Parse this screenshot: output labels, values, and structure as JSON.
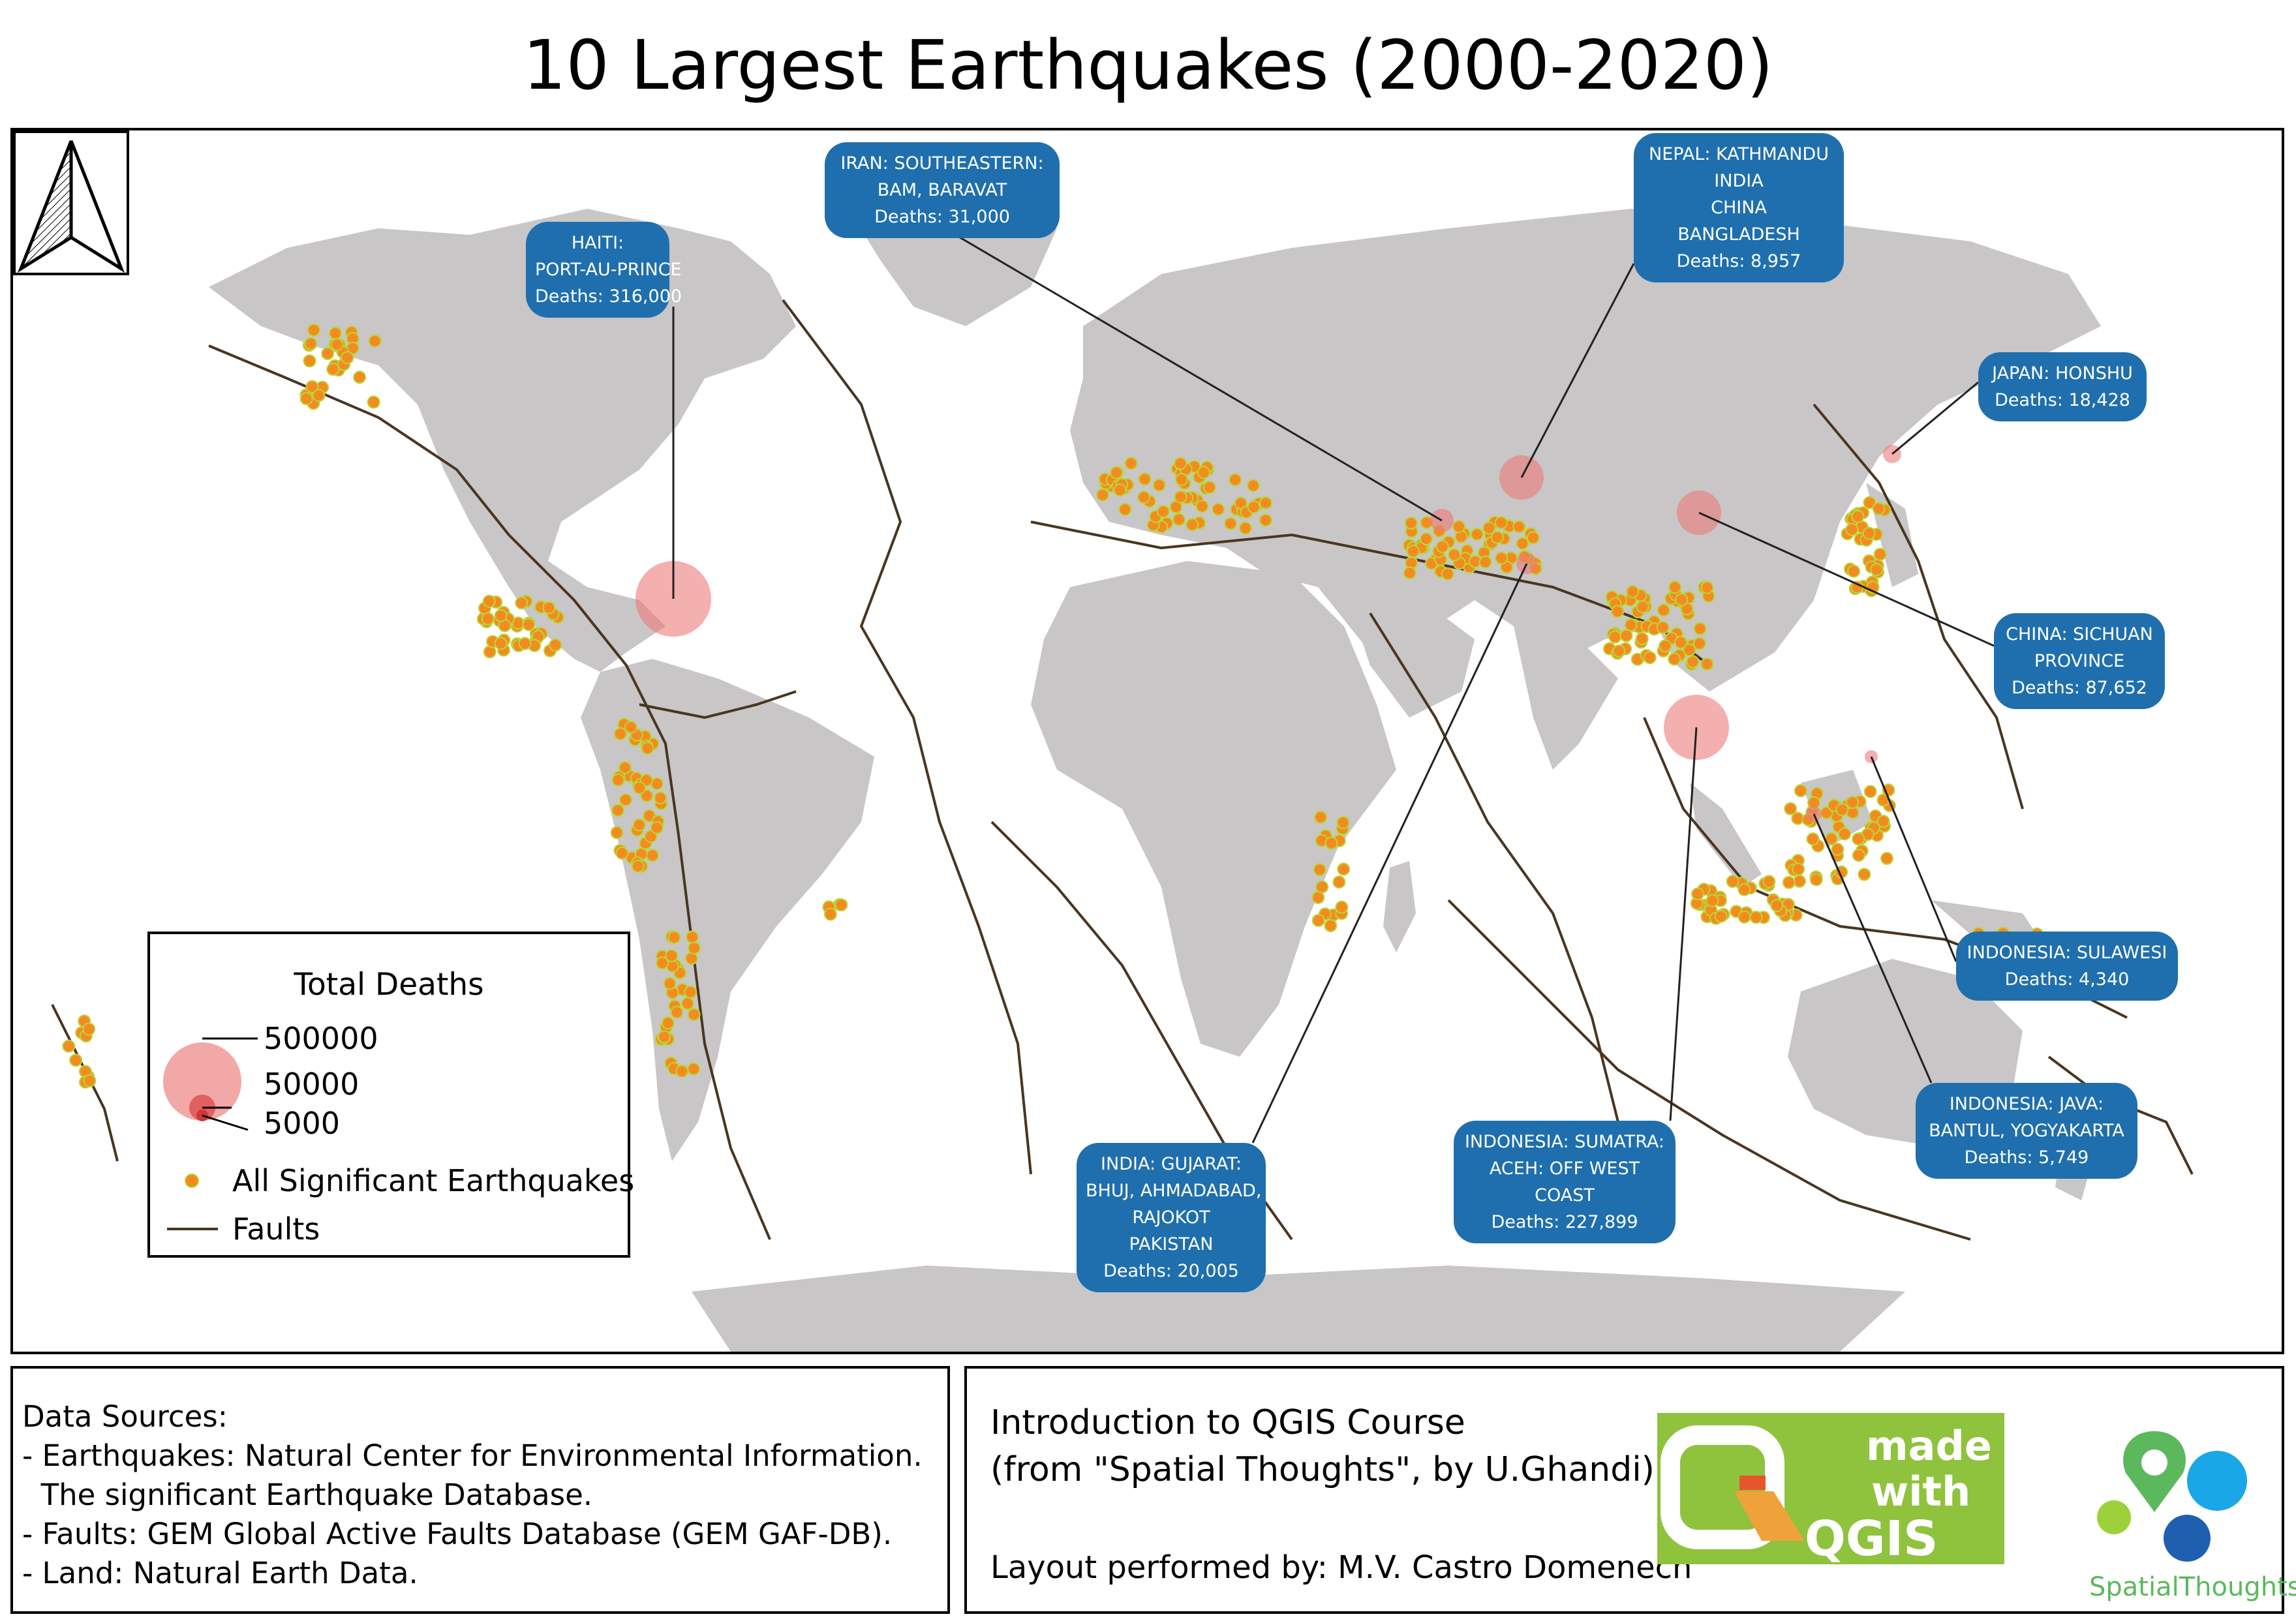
{
  "title": "10 Largest Earthquakes (2000-2020)",
  "map": {
    "land_color": "#c8c6c6",
    "fault_color": "#4a3520",
    "quake_color": "#f58a1f",
    "quake_outline": "#b5d83a",
    "death_bubble_color": "#ec7a7a"
  },
  "callouts": [
    {
      "lines": [
        "HAITI:",
        "PORT-AU-PRINCE",
        "Deaths: 316,000"
      ]
    },
    {
      "lines": [
        "IRAN:  SOUTHEASTERN:",
        "BAM, BARAVAT",
        "Deaths: 31,000"
      ]
    },
    {
      "lines": [
        "NEPAL:  KATHMANDU",
        "INDIA",
        "CHINA",
        "BANGLADESH",
        "Deaths: 8,957"
      ]
    },
    {
      "lines": [
        "JAPAN:  HONSHU",
        "Deaths: 18,428"
      ]
    },
    {
      "lines": [
        "CHINA:  SICHUAN",
        "PROVINCE",
        "Deaths: 87,652"
      ]
    },
    {
      "lines": [
        "INDONESIA:  SULAWESI",
        "Deaths: 4,340"
      ]
    },
    {
      "lines": [
        "INDONESIA:  JAVA:",
        "BANTUL, YOGYAKARTA",
        "Deaths: 5,749"
      ]
    },
    {
      "lines": [
        "INDONESIA:  SUMATRA:",
        "ACEH:  OFF WEST",
        "COAST",
        "Deaths: 227,899"
      ]
    },
    {
      "lines": [
        "INDIA:  GUJARAT:",
        "BHUJ, AHMADABAD,",
        "RAJOKOT",
        "PAKISTAN",
        "Deaths: 20,005"
      ]
    }
  ],
  "legend": {
    "title": "Total Deaths",
    "sizes": [
      "500000",
      "50000",
      "5000"
    ],
    "quakes_label": "All Significant Earthquakes",
    "faults_label": "Faults"
  },
  "sources": {
    "lines": [
      "Data Sources:",
      "- Earthquakes: Natural Center for Environmental Information.",
      "  The significant Earthquake Database.",
      "- Faults: GEM Global Active Faults Database (GEM GAF-DB).",
      "- Land: Natural Earth Data."
    ]
  },
  "credits": {
    "course_line1": "Introduction to QGIS Course",
    "course_line2": "(from \"Spatial Thoughts\", by U.Ghandi)",
    "layout_line": "Layout performed by: M.V. Castro Domenech",
    "badge_made": "made",
    "badge_with": "with",
    "badge_qgis": "QGIS",
    "st_logo_text": "SpatialThoughts"
  }
}
